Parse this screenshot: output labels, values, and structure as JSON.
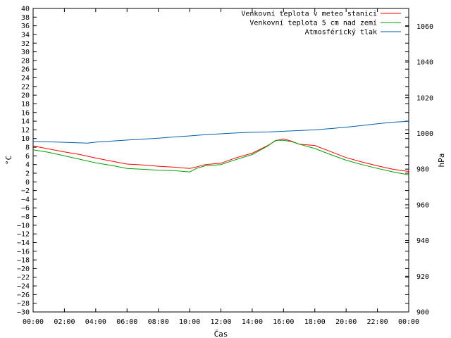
{
  "chart_data": {
    "type": "line",
    "xlabel": "Čas",
    "ylabel": "°C",
    "y2label": "hPa",
    "ylim": [
      -30,
      40
    ],
    "y2lim": [
      900,
      1070
    ],
    "y_ticks": [
      "40",
      "38",
      "36",
      "34",
      "32",
      "30",
      "28",
      "26",
      "24",
      "22",
      "20",
      "18",
      "16",
      "14",
      "12",
      "10",
      "8",
      "6",
      "4",
      "2",
      "0",
      "−2",
      "−4",
      "−6",
      "−8",
      "−10",
      "−12",
      "−14",
      "−16",
      "−18",
      "−20",
      "−22",
      "−24",
      "−26",
      "−28",
      "−30"
    ],
    "y2_ticks": [
      "1060",
      "1040",
      "1020",
      "1000",
      "980",
      "960",
      "940",
      "920",
      "900"
    ],
    "x_ticks": [
      "00:00",
      "02:00",
      "04:00",
      "06:00",
      "08:00",
      "10:00",
      "12:00",
      "14:00",
      "16:00",
      "18:00",
      "20:00",
      "22:00",
      "00:00"
    ],
    "legend_position": "top-right",
    "grid": false,
    "series": [
      {
        "name": "Venkovní teplota v meteo stanici",
        "color": "#ff0000",
        "axis": "left",
        "x": [
          0,
          1,
          2,
          3,
          4,
          5,
          6,
          7,
          8,
          9,
          10,
          10.5,
          11,
          12,
          13,
          14,
          15,
          15.5,
          16,
          16.5,
          17,
          18,
          19,
          20,
          21,
          22,
          23,
          24
        ],
        "values": [
          8.3,
          7.6,
          6.9,
          6.3,
          5.5,
          4.8,
          4.1,
          3.9,
          3.6,
          3.4,
          3.1,
          3.5,
          4.0,
          4.3,
          5.6,
          6.6,
          8.4,
          9.5,
          9.9,
          9.4,
          8.7,
          8.4,
          7.0,
          5.6,
          4.6,
          3.7,
          2.9,
          2.4
        ]
      },
      {
        "name": "Venkovní teplota 5 cm nad zemí",
        "color": "#00a000",
        "axis": "left",
        "x": [
          0,
          1,
          2,
          3,
          4,
          5,
          6,
          7,
          8,
          9,
          10,
          10.5,
          11,
          12,
          13,
          14,
          15,
          15.5,
          16,
          16.5,
          17,
          18,
          19,
          20,
          21,
          22,
          23,
          24
        ],
        "values": [
          7.4,
          6.8,
          6.0,
          5.2,
          4.4,
          3.8,
          3.1,
          2.9,
          2.7,
          2.6,
          2.3,
          3.2,
          3.7,
          4.0,
          5.2,
          6.3,
          8.3,
          9.6,
          9.6,
          9.3,
          8.7,
          7.7,
          6.3,
          5.0,
          4.0,
          3.1,
          2.3,
          1.6
        ]
      },
      {
        "name": "Atmosférický tlak",
        "color": "#0060ad",
        "axis": "right",
        "x": [
          0,
          1,
          2,
          3,
          3.5,
          4,
          5,
          6,
          7,
          8,
          9,
          10,
          11,
          12,
          13,
          14,
          15,
          16,
          17,
          18,
          19,
          20,
          21,
          22,
          23,
          24
        ],
        "values": [
          995.5,
          995.3,
          995.0,
          994.7,
          994.6,
          995.1,
          995.7,
          996.3,
          996.8,
          997.3,
          998.0,
          998.6,
          999.3,
          999.8,
          1000.3,
          1000.6,
          1000.8,
          1001.2,
          1001.6,
          1002.0,
          1002.7,
          1003.5,
          1004.4,
          1005.4,
          1006.3,
          1006.8
        ]
      }
    ]
  }
}
